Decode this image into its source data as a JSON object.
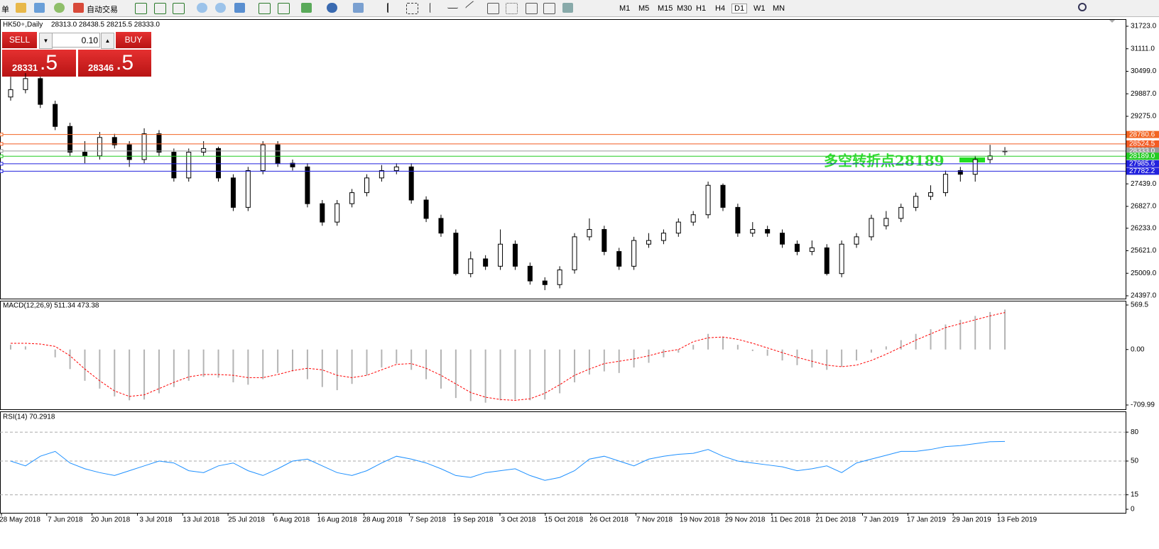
{
  "toolbar": {
    "menu": "单",
    "autotrade": "自动交易",
    "timeframes": [
      "M1",
      "M5",
      "M15",
      "M30",
      "H1",
      "H4",
      "D1",
      "W1",
      "MN"
    ],
    "active_timeframe": "D1"
  },
  "trade_panel": {
    "sell": "SELL",
    "buy": "BUY",
    "volume": "0.10",
    "sell_price": "28331",
    "sell_fraction": ".5",
    "buy_price": "28346",
    "buy_fraction": ".5"
  },
  "chart_data": [
    {
      "type": "candlestick",
      "title": "HK50∘,Daily",
      "info": "28313.0 28438.5 28215.5 28333.0",
      "up_color": "#ffffff",
      "down_color": "#000000",
      "ylim": [
        24397,
        31723
      ],
      "yticks": [
        {
          "value": 31723,
          "label": "31723.0"
        },
        {
          "value": 31111,
          "label": "31111.0"
        },
        {
          "value": 30499,
          "label": "30499.0"
        },
        {
          "value": 29887,
          "label": "29887.0"
        },
        {
          "value": 29275,
          "label": "29275.0"
        },
        {
          "value": 27439,
          "label": "27439.0"
        },
        {
          "value": 26827,
          "label": "26827.0"
        },
        {
          "value": 26233,
          "label": "26233.0"
        },
        {
          "value": 25621,
          "label": "25621.0"
        },
        {
          "value": 25009,
          "label": "25009.0"
        },
        {
          "value": 24397,
          "label": "24397.0"
        }
      ],
      "hlines": [
        {
          "value": 28780.6,
          "color": "#f26522"
        },
        {
          "value": 28524.5,
          "color": "#f25a22"
        },
        {
          "value": 28333,
          "label": "28333.0",
          "color": "#9a9a9a"
        },
        {
          "value": 28189,
          "label": "28189.0",
          "color": "#22cc22"
        },
        {
          "value": 27985.6,
          "color": "#2222dd"
        },
        {
          "value": 27782.2,
          "color": "#2222dd"
        }
      ],
      "annotation": "多空转折点28189",
      "date_labels": [
        "28 May 2018",
        "7 Jun 2018",
        "20 Jun 2018",
        "3 Jul 2018",
        "13 Jul 2018",
        "25 Jul 2018",
        "6 Aug 2018",
        "16 Aug 2018",
        "28 Aug 2018",
        "7 Sep 2018",
        "19 Sep 2018",
        "3 Oct 2018",
        "15 Oct 2018",
        "26 Oct 2018",
        "7 Nov 2018",
        "19 Nov 2018",
        "29 Nov 2018",
        "11 Dec 2018",
        "21 Dec 2018",
        "7 Jan 2019",
        "17 Jan 2019",
        "29 Jan 2019",
        "13 Feb 2019"
      ],
      "candles": [
        [
          29800,
          30350,
          29700,
          30000
        ],
        [
          30000,
          30450,
          29900,
          30300
        ],
        [
          30300,
          30350,
          29500,
          29600
        ],
        [
          29600,
          29700,
          28900,
          29000
        ],
        [
          29000,
          29100,
          28200,
          28300
        ],
        [
          28300,
          28600,
          28000,
          28200
        ],
        [
          28200,
          28850,
          28100,
          28700
        ],
        [
          28700,
          28800,
          28400,
          28500
        ],
        [
          28500,
          28600,
          27900,
          28100
        ],
        [
          28100,
          28950,
          28000,
          28800
        ],
        [
          28800,
          28900,
          28200,
          28300
        ],
        [
          28300,
          28400,
          27500,
          27600
        ],
        [
          27600,
          28400,
          27500,
          28300
        ],
        [
          28300,
          28600,
          28200,
          28400
        ],
        [
          28400,
          28450,
          27500,
          27600
        ],
        [
          27600,
          27700,
          26700,
          26800
        ],
        [
          26800,
          27900,
          26700,
          27800
        ],
        [
          27800,
          28600,
          27700,
          28500
        ],
        [
          28500,
          28600,
          27900,
          28000
        ],
        [
          28000,
          28100,
          27800,
          27900
        ],
        [
          27900,
          28000,
          26800,
          26900
        ],
        [
          26900,
          27000,
          26300,
          26400
        ],
        [
          26400,
          27000,
          26300,
          26900
        ],
        [
          26900,
          27300,
          26800,
          27200
        ],
        [
          27200,
          27700,
          27100,
          27600
        ],
        [
          27600,
          27950,
          27500,
          27800
        ],
        [
          27800,
          28000,
          27700,
          27900
        ],
        [
          27900,
          28000,
          26900,
          27000
        ],
        [
          27000,
          27100,
          26400,
          26500
        ],
        [
          26500,
          26600,
          26000,
          26100
        ],
        [
          26100,
          26200,
          24950,
          25000
        ],
        [
          25000,
          25600,
          24900,
          25400
        ],
        [
          25400,
          25500,
          25100,
          25200
        ],
        [
          25200,
          26200,
          25100,
          25800
        ],
        [
          25800,
          25900,
          25100,
          25200
        ],
        [
          25200,
          25300,
          24700,
          24800
        ],
        [
          24800,
          24900,
          24550,
          24700
        ],
        [
          24700,
          25200,
          24600,
          25100
        ],
        [
          25100,
          26100,
          25000,
          26000
        ],
        [
          26000,
          26500,
          25900,
          26200
        ],
        [
          26200,
          26300,
          25500,
          25600
        ],
        [
          25600,
          25700,
          25100,
          25200
        ],
        [
          25200,
          26000,
          25100,
          25900
        ],
        [
          25800,
          26100,
          25700,
          25900
        ],
        [
          25900,
          26200,
          25800,
          26100
        ],
        [
          26100,
          26500,
          26000,
          26400
        ],
        [
          26400,
          26700,
          26300,
          26600
        ],
        [
          26600,
          27500,
          26500,
          27400
        ],
        [
          27400,
          27450,
          26700,
          26800
        ],
        [
          26800,
          26900,
          26000,
          26100
        ],
        [
          26100,
          26400,
          26000,
          26200
        ],
        [
          26200,
          26300,
          26000,
          26100
        ],
        [
          26100,
          26200,
          25700,
          25800
        ],
        [
          25800,
          25900,
          25500,
          25600
        ],
        [
          25600,
          25900,
          25500,
          25700
        ],
        [
          25700,
          25800,
          24950,
          25000
        ],
        [
          25000,
          25900,
          24900,
          25800
        ],
        [
          25800,
          26100,
          25700,
          26000
        ],
        [
          26000,
          26600,
          25900,
          26500
        ],
        [
          26300,
          26700,
          26200,
          26500
        ],
        [
          26500,
          26900,
          26400,
          26800
        ],
        [
          26800,
          27200,
          26700,
          27100
        ],
        [
          27100,
          27400,
          27000,
          27200
        ],
        [
          27200,
          27800,
          27100,
          27700
        ],
        [
          27800,
          27900,
          27500,
          27700
        ],
        [
          27700,
          28200,
          27500,
          28100
        ],
        [
          28100,
          28500,
          28000,
          28200
        ],
        [
          28313,
          28438.5,
          28215.5,
          28333
        ]
      ]
    },
    {
      "type": "macd",
      "title": "MACD(12,26,9) 511.34 473.38",
      "ylim": [
        -709.99,
        569.5
      ],
      "yticks": [
        569.5,
        {
          "value": 0,
          "label": "0.00"
        },
        -709.99
      ],
      "histogram": {
        "color": "#b4b4b4",
        "values": [
          60,
          40,
          0,
          -100,
          -250,
          -400,
          -500,
          -600,
          -650,
          -640,
          -560,
          -480,
          -400,
          -350,
          -360,
          -420,
          -450,
          -380,
          -300,
          -280,
          -380,
          -480,
          -520,
          -440,
          -330,
          -230,
          -180,
          -260,
          -380,
          -500,
          -620,
          -660,
          -680,
          -650,
          -640,
          -650,
          -640,
          -560,
          -420,
          -320,
          -280,
          -300,
          -230,
          -170,
          -100,
          -40,
          60,
          200,
          160,
          60,
          -20,
          -80,
          -140,
          -200,
          -230,
          -260,
          -220,
          -140,
          -40,
          40,
          120,
          200,
          260,
          320,
          380,
          430,
          480,
          511.34
        ]
      },
      "signal": {
        "color": "#ff0000",
        "values": [
          80,
          80,
          70,
          40,
          -80,
          -250,
          -400,
          -530,
          -600,
          -580,
          -500,
          -420,
          -350,
          -320,
          -320,
          -330,
          -360,
          -360,
          -320,
          -270,
          -240,
          -260,
          -330,
          -360,
          -330,
          -260,
          -190,
          -180,
          -240,
          -330,
          -440,
          -550,
          -610,
          -640,
          -650,
          -630,
          -560,
          -450,
          -330,
          -250,
          -180,
          -150,
          -120,
          -80,
          -30,
          0,
          100,
          150,
          160,
          130,
          80,
          20,
          -40,
          -100,
          -150,
          -200,
          -220,
          -200,
          -140,
          -60,
          30,
          120,
          200,
          280,
          330,
          380,
          430,
          473.38
        ]
      }
    },
    {
      "type": "rsi",
      "title": "RSI(14) 70.2918",
      "color": "#1e90ff",
      "ylim": [
        0,
        100
      ],
      "yticks": [
        80,
        50,
        15,
        0
      ],
      "levels": [
        80,
        50,
        15
      ],
      "values": [
        50,
        45,
        55,
        60,
        48,
        42,
        38,
        35,
        40,
        45,
        50,
        48,
        40,
        38,
        45,
        48,
        40,
        35,
        42,
        50,
        52,
        45,
        38,
        35,
        40,
        48,
        55,
        52,
        48,
        42,
        35,
        33,
        38,
        40,
        42,
        35,
        30,
        33,
        40,
        52,
        55,
        50,
        45,
        52,
        55,
        57,
        58,
        62,
        55,
        50,
        48,
        46,
        44,
        40,
        42,
        45,
        38,
        48,
        52,
        56,
        60,
        60,
        62,
        65,
        66,
        68,
        70,
        70.2918
      ]
    }
  ]
}
